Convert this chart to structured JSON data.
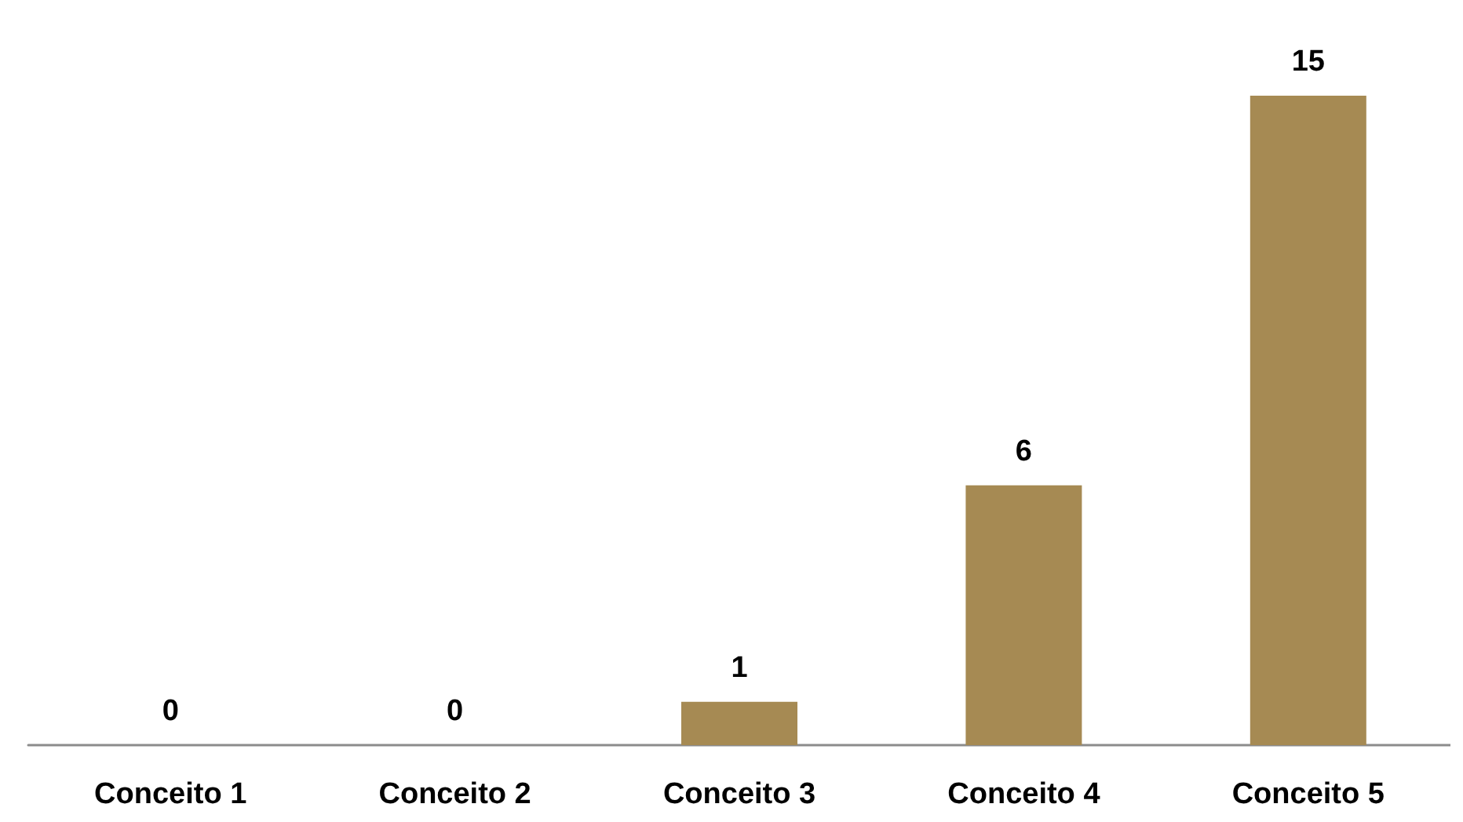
{
  "chart_data": {
    "type": "bar",
    "categories": [
      "Conceito 1",
      "Conceito 2",
      "Conceito 3",
      "Conceito 4",
      "Conceito 5"
    ],
    "values": [
      0,
      0,
      1,
      6,
      15
    ],
    "color": "#a68a53",
    "data_labels": true
  }
}
